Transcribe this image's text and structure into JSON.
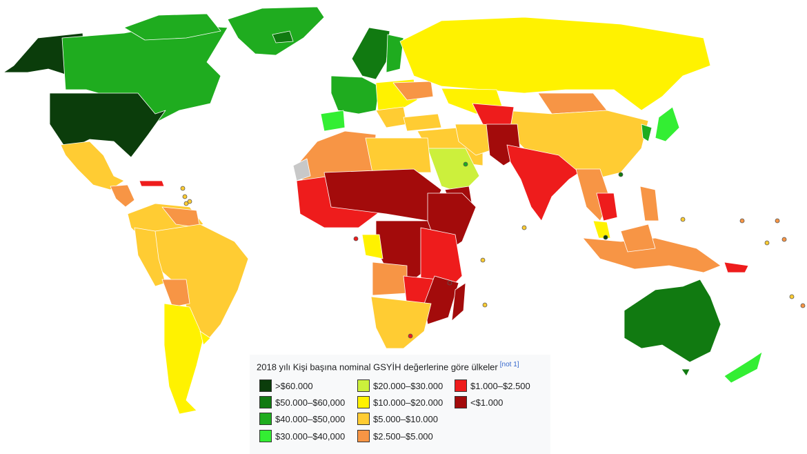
{
  "legend": {
    "title": "2018 yılı Kişi başına nominal GSYİH değerlerine göre ülkeler",
    "note": "[not 1]",
    "items": [
      {
        "label": ">$60.000",
        "color": "#0b3d0b"
      },
      {
        "label": "$50.000–$60,000",
        "color": "#117a11"
      },
      {
        "label": "$40.000–$50,000",
        "color": "#1fac1f"
      },
      {
        "label": "$30.000–$40,000",
        "color": "#33ee33"
      },
      {
        "label": "$20.000–$30.000",
        "color": "#ccf03c"
      },
      {
        "label": "$10.000–$20.000",
        "color": "#fff200"
      },
      {
        "label": "$5.000–$10.000",
        "color": "#ffcc33"
      },
      {
        "label": "$2.500–$5.000",
        "color": "#f79545"
      },
      {
        "label": "$1.000–$2.500",
        "color": "#ee1c1c"
      },
      {
        "label": "<$1.000",
        "color": "#a30b0b"
      }
    ]
  },
  "no_data_color": "#c8c8c8"
}
